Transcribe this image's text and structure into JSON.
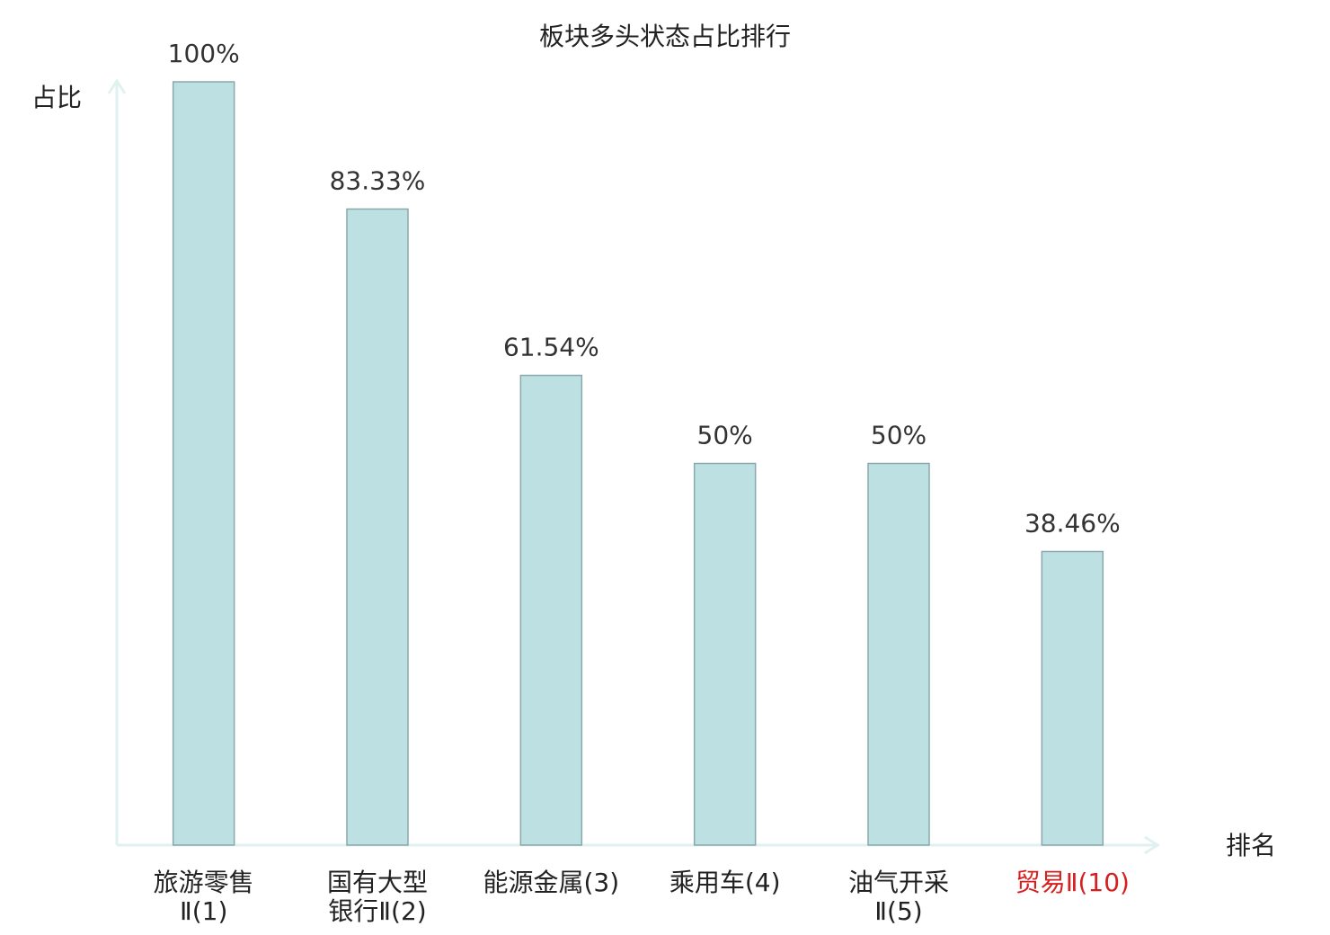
{
  "chart_data": {
    "type": "bar",
    "title": "板块多头状态占比排行",
    "y_label": "占比",
    "x_label": "排名",
    "categories": [
      [
        "旅游零售",
        "Ⅱ(1)"
      ],
      [
        "国有大型",
        "银行Ⅱ(2)"
      ],
      [
        "能源金属(3)"
      ],
      [
        "乘用车(4)"
      ],
      [
        "油气开采",
        "Ⅱ(5)"
      ],
      [
        "贸易Ⅱ(10)"
      ]
    ],
    "category_label_colors": [
      "#222222",
      "#222222",
      "#222222",
      "#222222",
      "#222222",
      "#d62020"
    ],
    "values": [
      100,
      83.33,
      61.54,
      50,
      50,
      38.46
    ],
    "value_labels": [
      "100%",
      "83.33%",
      "61.54%",
      "50%",
      "50%",
      "38.46%"
    ],
    "color": "#bde0e3",
    "edge_color": "#8aa8ab",
    "axis_color": "#dff2ef",
    "ylim": [
      0,
      100
    ]
  }
}
